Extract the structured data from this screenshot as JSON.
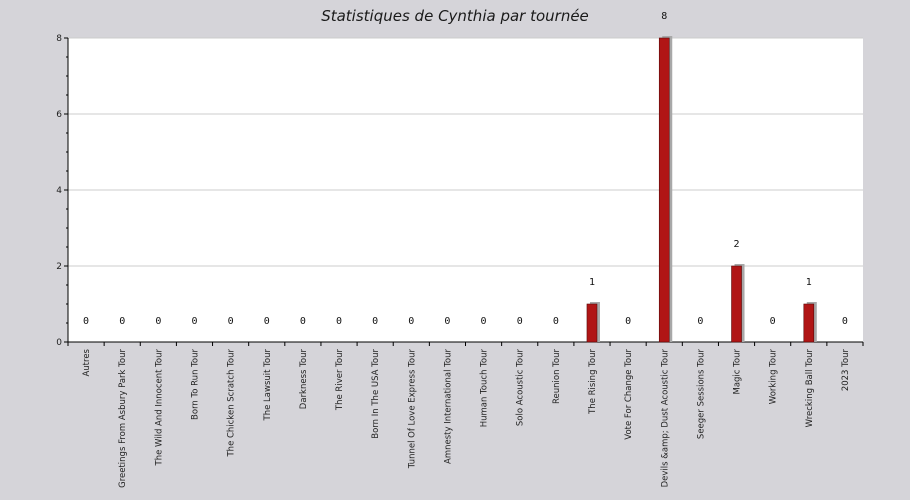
{
  "chart_data": {
    "type": "bar",
    "title": "Statistiques de Cynthia par tournée",
    "xlabel": "",
    "ylabel": "",
    "ylim": [
      0,
      8
    ],
    "yticks": [
      0,
      2,
      4,
      6,
      8
    ],
    "grid": true,
    "categories": [
      "Autres",
      "Greetings From Asbury Park Tour",
      "The Wild And Innocent Tour",
      "Born To Run Tour",
      "The Chicken Scratch Tour",
      "The Lawsuit Tour",
      "Darkness Tour",
      "The River Tour",
      "Born In The USA Tour",
      "Tunnel Of Love Express Tour",
      "Amnesty International Tour",
      "Human Touch Tour",
      "Solo Acoustic Tour",
      "Reunion Tour",
      "The Rising Tour",
      "Vote For Change Tour",
      "Devils &amp; Dust Acoustic Tour",
      "Seeger Sessions Tour",
      "Magic Tour",
      "Working Tour",
      "Wrecking Ball Tour",
      "2023 Tour"
    ],
    "values": [
      0,
      0,
      0,
      0,
      0,
      0,
      0,
      0,
      0,
      0,
      0,
      0,
      0,
      0,
      1,
      0,
      8,
      0,
      2,
      0,
      1,
      0
    ],
    "colors": {
      "bar": "#b01515",
      "bar_shadow": "#a8a8a8",
      "plot_background": "#ffffff",
      "page_background": "#d5d4d9",
      "grid": "#cccccc"
    }
  }
}
